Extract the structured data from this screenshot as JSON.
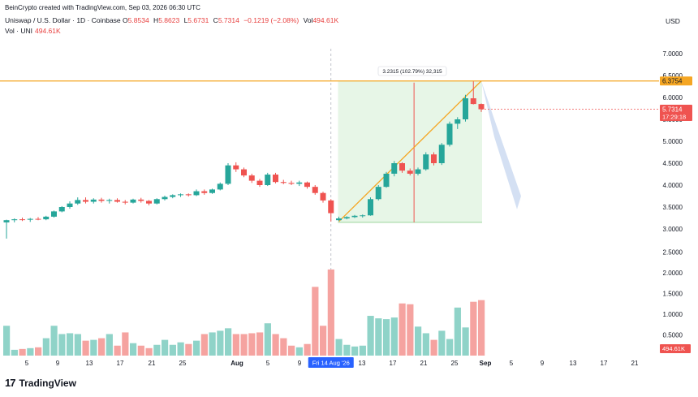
{
  "attribution": "BeinCrypto created with TradingView.com, Sep 03, 2026 06:30 UTC",
  "legend": {
    "symbol": "Uniswap / U.S. Dollar · 1D · Coinbase",
    "o_label": "O",
    "o": "5.8534",
    "h_label": "H",
    "h": "5.8623",
    "l_label": "L",
    "l": "5.6731",
    "c_label": "C",
    "c": "5.7314",
    "change": "−0.1219 (−2.08%)",
    "vol_label": "Vol",
    "vol": "494.61K",
    "vol_series": "Vol · UNI",
    "vol_series_value": "494.61K"
  },
  "currency": "USD",
  "brand": {
    "logo": "17",
    "name": "TradingView"
  },
  "colors": {
    "up": "#26a69a",
    "down": "#ef5350",
    "up_vol": "#8fd3c8",
    "down_vol": "#f5a3a0",
    "resistance": "#f5a623",
    "range_fill": "#e3f4e3",
    "projection": "#c9d8f0",
    "crosshair_tag": "#2962ff"
  },
  "chart_data": {
    "type": "candlestick",
    "price_axis": {
      "ticks": [
        "7.0000",
        "6.5000",
        "6.0000",
        "5.5000",
        "5.0000",
        "4.5000",
        "4.0000",
        "3.5000",
        "3.0000",
        "2.5000",
        "2.0000",
        "1.5000",
        "1.0000",
        "0.5000"
      ]
    },
    "time_axis": {
      "ticks": [
        "5",
        "9",
        "13",
        "17",
        "21",
        "25",
        "Aug",
        "5",
        "9",
        "13",
        "17",
        "21",
        "25",
        "Sep",
        "5",
        "9",
        "13",
        "17",
        "21"
      ]
    },
    "crosshair_date_label": "Fri 14 Aug '26",
    "resistance_level": {
      "value": 6.3754,
      "label": "6.3754"
    },
    "last_price": {
      "value": 5.7314,
      "label": "5.7314",
      "countdown": "17:29:18"
    },
    "volume_last_label": "494.61K",
    "measure_label": "3.2315 (102.79%) 32,315",
    "candles": [
      [
        3.15,
        3.21,
        2.78,
        3.2
      ],
      [
        3.2,
        3.24,
        3.15,
        3.22
      ],
      [
        3.22,
        3.26,
        3.18,
        3.21
      ],
      [
        3.21,
        3.25,
        3.16,
        3.23
      ],
      [
        3.23,
        3.27,
        3.2,
        3.22
      ],
      [
        3.22,
        3.3,
        3.2,
        3.28
      ],
      [
        3.28,
        3.42,
        3.26,
        3.4
      ],
      [
        3.4,
        3.52,
        3.38,
        3.5
      ],
      [
        3.5,
        3.63,
        3.46,
        3.58
      ],
      [
        3.58,
        3.72,
        3.55,
        3.66
      ],
      [
        3.66,
        3.72,
        3.58,
        3.62
      ],
      [
        3.62,
        3.7,
        3.58,
        3.67
      ],
      [
        3.67,
        3.71,
        3.6,
        3.64
      ],
      [
        3.64,
        3.69,
        3.58,
        3.66
      ],
      [
        3.66,
        3.7,
        3.6,
        3.62
      ],
      [
        3.62,
        3.66,
        3.56,
        3.6
      ],
      [
        3.6,
        3.69,
        3.58,
        3.67
      ],
      [
        3.67,
        3.71,
        3.6,
        3.64
      ],
      [
        3.64,
        3.66,
        3.54,
        3.58
      ],
      [
        3.58,
        3.7,
        3.56,
        3.68
      ],
      [
        3.68,
        3.76,
        3.65,
        3.73
      ],
      [
        3.73,
        3.79,
        3.7,
        3.77
      ],
      [
        3.77,
        3.81,
        3.73,
        3.79
      ],
      [
        3.79,
        3.81,
        3.74,
        3.77
      ],
      [
        3.77,
        3.9,
        3.75,
        3.86
      ],
      [
        3.86,
        3.9,
        3.78,
        3.82
      ],
      [
        3.82,
        3.92,
        3.8,
        3.9
      ],
      [
        3.9,
        4.06,
        3.88,
        4.03
      ],
      [
        4.03,
        4.5,
        4.0,
        4.45
      ],
      [
        4.45,
        4.52,
        4.3,
        4.36
      ],
      [
        4.36,
        4.4,
        4.18,
        4.22
      ],
      [
        4.22,
        4.26,
        4.05,
        4.1
      ],
      [
        4.1,
        4.14,
        3.96,
        4.0
      ],
      [
        4.0,
        4.28,
        3.98,
        4.24
      ],
      [
        4.24,
        4.28,
        4.04,
        4.07
      ],
      [
        4.07,
        4.12,
        4.02,
        4.05
      ],
      [
        4.05,
        4.1,
        4.0,
        4.03
      ],
      [
        4.03,
        4.1,
        3.98,
        4.06
      ],
      [
        4.06,
        4.08,
        3.92,
        3.96
      ],
      [
        3.96,
        4.0,
        3.78,
        3.82
      ],
      [
        3.82,
        3.85,
        3.6,
        3.65
      ],
      [
        3.65,
        3.68,
        3.17,
        3.36
      ],
      [
        3.2,
        3.28,
        3.18,
        3.24
      ],
      [
        3.24,
        3.29,
        3.22,
        3.27
      ],
      [
        3.27,
        3.32,
        3.25,
        3.3
      ],
      [
        3.3,
        3.33,
        3.26,
        3.31
      ],
      [
        3.31,
        3.72,
        3.3,
        3.68
      ],
      [
        3.68,
        4.0,
        3.65,
        3.96
      ],
      [
        3.96,
        4.3,
        3.94,
        4.26
      ],
      [
        4.26,
        4.55,
        4.2,
        4.5
      ],
      [
        4.5,
        4.52,
        4.28,
        4.33
      ],
      [
        4.33,
        4.38,
        4.22,
        4.26
      ],
      [
        4.26,
        4.4,
        4.22,
        4.36
      ],
      [
        4.36,
        4.75,
        4.33,
        4.7
      ],
      [
        4.7,
        4.75,
        4.45,
        4.5
      ],
      [
        4.5,
        4.96,
        4.46,
        4.92
      ],
      [
        4.92,
        5.45,
        4.88,
        5.4
      ],
      [
        5.4,
        5.55,
        5.28,
        5.5
      ],
      [
        5.5,
        6.06,
        5.45,
        5.98
      ],
      [
        5.98,
        6.38,
        5.84,
        5.85
      ],
      [
        5.85,
        5.86,
        5.67,
        5.73
      ]
    ],
    "volumes": [
      0.72,
      0.14,
      0.16,
      0.18,
      0.2,
      0.42,
      0.72,
      0.52,
      0.54,
      0.52,
      0.36,
      0.38,
      0.42,
      0.52,
      0.24,
      0.56,
      0.3,
      0.24,
      0.18,
      0.26,
      0.38,
      0.26,
      0.32,
      0.28,
      0.36,
      0.52,
      0.56,
      0.6,
      0.66,
      0.52,
      0.52,
      0.54,
      0.56,
      0.78,
      0.52,
      0.42,
      0.24,
      0.2,
      0.28,
      1.66,
      0.72,
      2.08,
      0.4,
      0.26,
      0.22,
      0.24,
      0.96,
      0.9,
      0.88,
      0.92,
      1.26,
      1.24,
      0.7,
      0.54,
      0.38,
      0.6,
      0.4,
      1.16,
      0.68,
      1.3,
      1.34
    ]
  }
}
